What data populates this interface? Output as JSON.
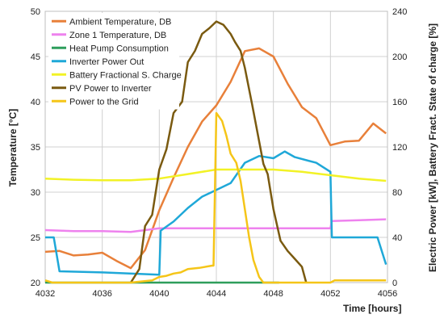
{
  "chart_data": {
    "type": "line",
    "xlabel": "Time [hours]",
    "ylabel_left": "Temperature [°C]",
    "ylabel_right": "Electric Power [kW], Battery Fract. State of charge [%]",
    "xlim": [
      4032,
      4056
    ],
    "ylim_left": [
      20,
      50
    ],
    "ylim_right": [
      0,
      240
    ],
    "x_ticks": [
      4032,
      4036,
      4040,
      4044,
      4048,
      4052,
      4056
    ],
    "y_ticks_left": [
      20,
      25,
      30,
      35,
      40,
      45,
      50
    ],
    "y_ticks_right": [
      0,
      40,
      80,
      120,
      160,
      200,
      240
    ],
    "grid": true,
    "legend_position": "top-left",
    "series": [
      {
        "name": "Ambient Temperature, DB",
        "axis": "left",
        "color": "#E8803A",
        "points": [
          [
            4032,
            23.4
          ],
          [
            4033,
            23.5
          ],
          [
            4034,
            23.0
          ],
          [
            4035,
            23.1
          ],
          [
            4036,
            23.3
          ],
          [
            4037,
            22.4
          ],
          [
            4038,
            21.6
          ],
          [
            4039,
            23.6
          ],
          [
            4040,
            28.0
          ],
          [
            4041,
            31.6
          ],
          [
            4042,
            35.0
          ],
          [
            4043,
            37.8
          ],
          [
            4044,
            39.6
          ],
          [
            4045,
            42.2
          ],
          [
            4046,
            45.6
          ],
          [
            4047,
            45.9
          ],
          [
            4048,
            45.0
          ],
          [
            4049,
            42.0
          ],
          [
            4050,
            39.4
          ],
          [
            4051,
            38.2
          ],
          [
            4052,
            35.2
          ],
          [
            4053,
            35.6
          ],
          [
            4054,
            35.7
          ],
          [
            4055,
            37.6
          ],
          [
            4055.9,
            36.5
          ]
        ]
      },
      {
        "name": "Zone 1 Temperature, DB",
        "axis": "left",
        "color": "#EE82EE",
        "points": [
          [
            4032,
            25.8
          ],
          [
            4034,
            25.7
          ],
          [
            4036,
            25.7
          ],
          [
            4038,
            25.6
          ],
          [
            4040,
            26.0
          ],
          [
            4042,
            26.0
          ],
          [
            4044,
            26.0
          ],
          [
            4046,
            26.0
          ],
          [
            4048,
            26.0
          ],
          [
            4050,
            26.0
          ],
          [
            4052,
            26.0
          ],
          [
            4052.1,
            26.8
          ],
          [
            4054,
            26.9
          ],
          [
            4055.9,
            27.0
          ]
        ]
      },
      {
        "name": "Heat Pump Consumption",
        "axis": "right",
        "color": "#2E9E5B",
        "points": [
          [
            4032,
            0
          ],
          [
            4048.4,
            0
          ]
        ]
      },
      {
        "name": "Inverter Power Out",
        "axis": "right",
        "color": "#1FA8D8",
        "points": [
          [
            4032,
            40
          ],
          [
            4032.6,
            40
          ],
          [
            4033,
            10
          ],
          [
            4036,
            9
          ],
          [
            4040,
            7
          ],
          [
            4040.1,
            46
          ],
          [
            4041,
            54
          ],
          [
            4042,
            66
          ],
          [
            4043,
            76
          ],
          [
            4044,
            82
          ],
          [
            4045,
            88
          ],
          [
            4046,
            106
          ],
          [
            4047,
            112
          ],
          [
            4048,
            110
          ],
          [
            4048.8,
            116
          ],
          [
            4049.5,
            111
          ],
          [
            4051,
            106
          ],
          [
            4052,
            98
          ],
          [
            4052.1,
            40
          ],
          [
            4055.3,
            40
          ],
          [
            4055.9,
            16
          ]
        ]
      },
      {
        "name": "Battery Fractional S. Charge",
        "axis": "right",
        "color": "#F2F226",
        "points": [
          [
            4032,
            92
          ],
          [
            4034,
            91
          ],
          [
            4036,
            90.5
          ],
          [
            4038,
            90.5
          ],
          [
            4040,
            92
          ],
          [
            4042,
            96
          ],
          [
            4044,
            100
          ],
          [
            4046,
            100
          ],
          [
            4048,
            100
          ],
          [
            4050,
            98
          ],
          [
            4052,
            95
          ],
          [
            4054,
            92
          ],
          [
            4055.9,
            90
          ]
        ]
      },
      {
        "name": "PV Power to Inverter",
        "axis": "right",
        "color": "#7A5A10",
        "points": [
          [
            4038,
            0
          ],
          [
            4038.6,
            12
          ],
          [
            4039,
            50
          ],
          [
            4039.5,
            60
          ],
          [
            4040,
            100
          ],
          [
            4040.5,
            118
          ],
          [
            4041,
            150
          ],
          [
            4041.6,
            160
          ],
          [
            4042,
            195
          ],
          [
            4042.5,
            205
          ],
          [
            4043,
            220
          ],
          [
            4043.5,
            225
          ],
          [
            4044,
            231
          ],
          [
            4044.5,
            228
          ],
          [
            4045,
            220
          ],
          [
            4045.3,
            213
          ],
          [
            4045.7,
            205
          ],
          [
            4046,
            190
          ],
          [
            4046.5,
            158
          ],
          [
            4047,
            125
          ],
          [
            4047.3,
            105
          ],
          [
            4047.6,
            96
          ],
          [
            4048,
            65
          ],
          [
            4048.5,
            37
          ],
          [
            4049,
            28
          ],
          [
            4049.5,
            21
          ],
          [
            4050,
            14
          ],
          [
            4050.3,
            0
          ]
        ]
      },
      {
        "name": "Power to the Grid",
        "axis": "right",
        "color": "#F5C518",
        "points": [
          [
            4032,
            2
          ],
          [
            4032.5,
            0
          ],
          [
            4038,
            0
          ],
          [
            4039.5,
            2
          ],
          [
            4040,
            5
          ],
          [
            4040.5,
            6
          ],
          [
            4041,
            8
          ],
          [
            4041.5,
            9
          ],
          [
            4042,
            12
          ],
          [
            4042.8,
            13
          ],
          [
            4043.7,
            15
          ],
          [
            4043.8,
            15
          ],
          [
            4044,
            150
          ],
          [
            4044.4,
            143
          ],
          [
            4044.7,
            130
          ],
          [
            4045,
            114
          ],
          [
            4045.4,
            106
          ],
          [
            4045.7,
            90
          ],
          [
            4046,
            65
          ],
          [
            4046.3,
            40
          ],
          [
            4046.6,
            20
          ],
          [
            4047,
            5
          ],
          [
            4047.3,
            0
          ],
          [
            4052,
            0
          ],
          [
            4052.3,
            2
          ],
          [
            4055.9,
            2
          ]
        ]
      }
    ]
  }
}
